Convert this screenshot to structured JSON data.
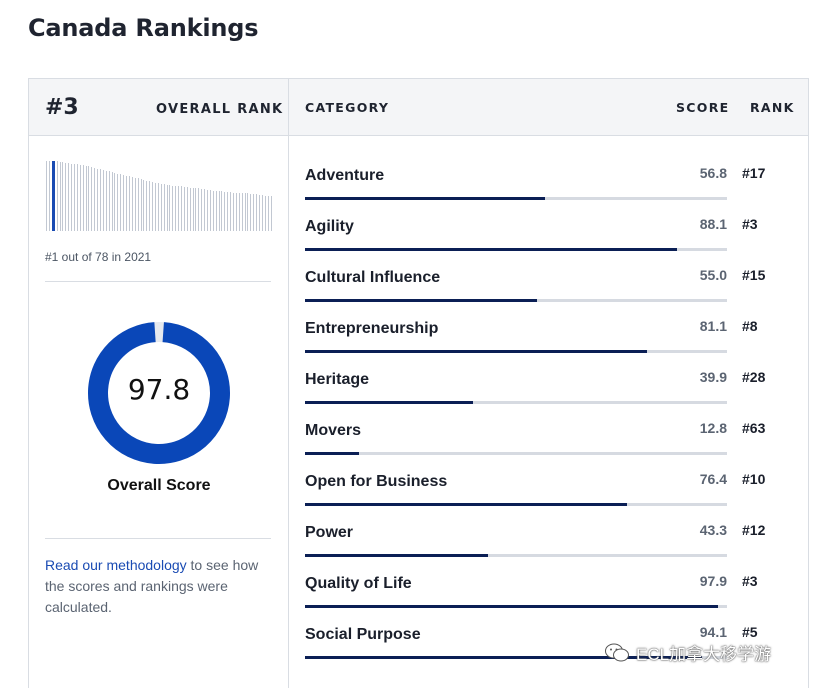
{
  "page": {
    "title": "Canada Rankings"
  },
  "overall": {
    "rank": "#3",
    "rank_label": "OVERALL RANK",
    "history_caption": "#1 out of 78 in 2021",
    "history_bars": [
      0.99,
      0.99,
      0.98,
      0.98,
      0.97,
      0.97,
      0.96,
      0.96,
      0.95,
      0.95,
      0.94,
      0.93,
      0.93,
      0.92,
      0.91,
      0.9,
      0.89,
      0.88,
      0.87,
      0.86,
      0.85,
      0.84,
      0.83,
      0.82,
      0.81,
      0.8,
      0.79,
      0.78,
      0.77,
      0.76,
      0.75,
      0.74,
      0.73,
      0.72,
      0.71,
      0.7,
      0.69,
      0.68,
      0.67,
      0.66,
      0.66,
      0.65,
      0.65,
      0.64,
      0.64,
      0.63,
      0.63,
      0.62,
      0.62,
      0.61,
      0.61,
      0.6,
      0.6,
      0.59,
      0.59,
      0.58,
      0.58,
      0.57,
      0.57,
      0.56,
      0.56,
      0.55,
      0.55,
      0.55,
      0.54,
      0.54,
      0.54,
      0.53,
      0.53,
      0.53,
      0.52,
      0.52,
      0.52,
      0.51,
      0.51,
      0.5,
      0.5,
      0.49
    ],
    "current_bar_index": 2,
    "score": "97.8",
    "score_fraction": 0.978,
    "score_label": "Overall Score",
    "methodology_link": "Read our methodology",
    "methodology_text": " to see how the scores and rankings were calculated."
  },
  "table": {
    "headers": {
      "category": "CATEGORY",
      "score": "SCORE",
      "rank": "RANK"
    },
    "rows": [
      {
        "category": "Adventure",
        "score": "56.8",
        "rank": "#17",
        "fill": 0.568
      },
      {
        "category": "Agility",
        "score": "88.1",
        "rank": "#3",
        "fill": 0.881
      },
      {
        "category": "Cultural Influence",
        "score": "55.0",
        "rank": "#15",
        "fill": 0.55
      },
      {
        "category": "Entrepreneurship",
        "score": "81.1",
        "rank": "#8",
        "fill": 0.811
      },
      {
        "category": "Heritage",
        "score": "39.9",
        "rank": "#28",
        "fill": 0.399
      },
      {
        "category": "Movers",
        "score": "12.8",
        "rank": "#63",
        "fill": 0.128
      },
      {
        "category": "Open for Business",
        "score": "76.4",
        "rank": "#10",
        "fill": 0.764
      },
      {
        "category": "Power",
        "score": "43.3",
        "rank": "#12",
        "fill": 0.433
      },
      {
        "category": "Quality of Life",
        "score": "97.9",
        "rank": "#3",
        "fill": 0.979
      },
      {
        "category": "Social Purpose",
        "score": "94.1",
        "rank": "#5",
        "fill": 0.941
      }
    ]
  },
  "colors": {
    "accent": "#0a47b8",
    "bar_fill": "#0b1f55",
    "track": "#d6dae1"
  },
  "watermark": {
    "text": "ECL加拿大移学游",
    "icon": "wechat-logo-icon"
  }
}
